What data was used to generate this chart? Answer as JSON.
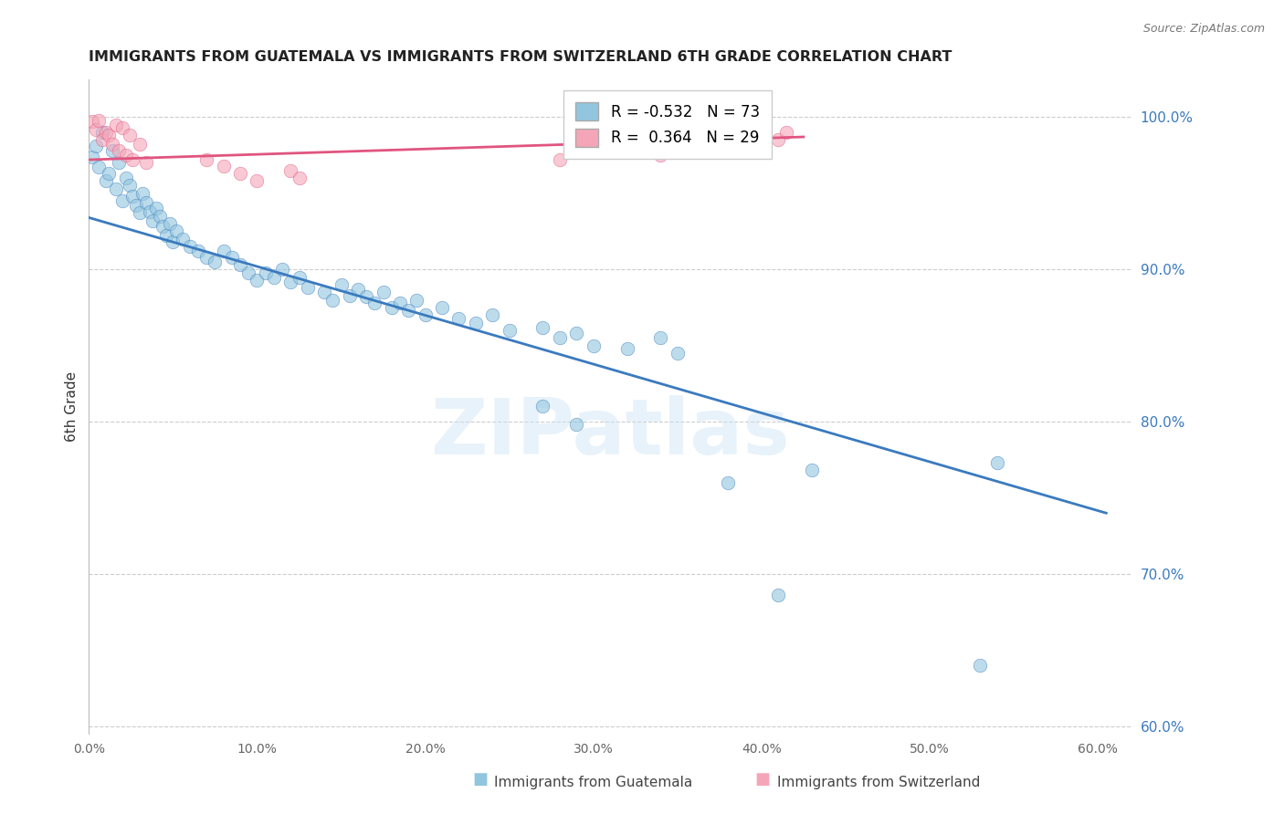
{
  "title": "IMMIGRANTS FROM GUATEMALA VS IMMIGRANTS FROM SWITZERLAND 6TH GRADE CORRELATION CHART",
  "source": "Source: ZipAtlas.com",
  "ylabel": "6th Grade",
  "legend_label_blue": "Immigrants from Guatemala",
  "legend_label_pink": "Immigrants from Switzerland",
  "xlim": [
    0.0,
    0.62
  ],
  "ylim": [
    0.595,
    1.025
  ],
  "xtick_labels": [
    "0.0%",
    "10.0%",
    "20.0%",
    "30.0%",
    "40.0%",
    "50.0%",
    "60.0%"
  ],
  "xtick_values": [
    0.0,
    0.1,
    0.2,
    0.3,
    0.4,
    0.5,
    0.6
  ],
  "ytick_right_labels": [
    "100.0%",
    "90.0%",
    "80.0%",
    "70.0%",
    "60.0%"
  ],
  "ytick_right_values": [
    1.0,
    0.9,
    0.8,
    0.7,
    0.6
  ],
  "r_blue": -0.532,
  "n_blue": 73,
  "r_pink": 0.364,
  "n_pink": 29,
  "blue_color": "#92c5de",
  "pink_color": "#f4a6b8",
  "blue_line_color": "#3a7abf",
  "pink_line_color": "#e05580",
  "watermark_text": "ZIPatlas",
  "blue_line_x": [
    0.0,
    0.605
  ],
  "blue_line_y": [
    0.934,
    0.74
  ],
  "pink_line_x": [
    0.0,
    0.425
  ],
  "pink_line_y": [
    0.972,
    0.987
  ],
  "blue_scatter": [
    [
      0.002,
      0.974
    ],
    [
      0.004,
      0.981
    ],
    [
      0.006,
      0.967
    ],
    [
      0.008,
      0.99
    ],
    [
      0.01,
      0.958
    ],
    [
      0.012,
      0.963
    ],
    [
      0.014,
      0.978
    ],
    [
      0.016,
      0.953
    ],
    [
      0.018,
      0.97
    ],
    [
      0.02,
      0.945
    ],
    [
      0.022,
      0.96
    ],
    [
      0.024,
      0.955
    ],
    [
      0.026,
      0.948
    ],
    [
      0.028,
      0.942
    ],
    [
      0.03,
      0.937
    ],
    [
      0.032,
      0.95
    ],
    [
      0.034,
      0.944
    ],
    [
      0.036,
      0.938
    ],
    [
      0.038,
      0.932
    ],
    [
      0.04,
      0.94
    ],
    [
      0.042,
      0.935
    ],
    [
      0.044,
      0.928
    ],
    [
      0.046,
      0.922
    ],
    [
      0.048,
      0.93
    ],
    [
      0.05,
      0.918
    ],
    [
      0.052,
      0.925
    ],
    [
      0.056,
      0.92
    ],
    [
      0.06,
      0.915
    ],
    [
      0.065,
      0.912
    ],
    [
      0.07,
      0.908
    ],
    [
      0.075,
      0.905
    ],
    [
      0.08,
      0.912
    ],
    [
      0.085,
      0.908
    ],
    [
      0.09,
      0.903
    ],
    [
      0.095,
      0.898
    ],
    [
      0.1,
      0.893
    ],
    [
      0.105,
      0.898
    ],
    [
      0.11,
      0.895
    ],
    [
      0.115,
      0.9
    ],
    [
      0.12,
      0.892
    ],
    [
      0.125,
      0.895
    ],
    [
      0.13,
      0.888
    ],
    [
      0.14,
      0.885
    ],
    [
      0.145,
      0.88
    ],
    [
      0.15,
      0.89
    ],
    [
      0.155,
      0.883
    ],
    [
      0.16,
      0.887
    ],
    [
      0.165,
      0.882
    ],
    [
      0.17,
      0.878
    ],
    [
      0.175,
      0.885
    ],
    [
      0.18,
      0.875
    ],
    [
      0.185,
      0.878
    ],
    [
      0.19,
      0.873
    ],
    [
      0.195,
      0.88
    ],
    [
      0.2,
      0.87
    ],
    [
      0.21,
      0.875
    ],
    [
      0.22,
      0.868
    ],
    [
      0.23,
      0.865
    ],
    [
      0.24,
      0.87
    ],
    [
      0.25,
      0.86
    ],
    [
      0.27,
      0.862
    ],
    [
      0.28,
      0.855
    ],
    [
      0.29,
      0.858
    ],
    [
      0.3,
      0.85
    ],
    [
      0.32,
      0.848
    ],
    [
      0.34,
      0.855
    ],
    [
      0.35,
      0.845
    ],
    [
      0.27,
      0.81
    ],
    [
      0.29,
      0.798
    ],
    [
      0.38,
      0.76
    ],
    [
      0.43,
      0.768
    ],
    [
      0.54,
      0.773
    ],
    [
      0.41,
      0.686
    ]
  ],
  "pink_scatter": [
    [
      0.002,
      0.997
    ],
    [
      0.004,
      0.992
    ],
    [
      0.006,
      0.998
    ],
    [
      0.008,
      0.985
    ],
    [
      0.01,
      0.99
    ],
    [
      0.012,
      0.988
    ],
    [
      0.014,
      0.982
    ],
    [
      0.016,
      0.995
    ],
    [
      0.018,
      0.978
    ],
    [
      0.02,
      0.993
    ],
    [
      0.022,
      0.975
    ],
    [
      0.024,
      0.988
    ],
    [
      0.026,
      0.972
    ],
    [
      0.03,
      0.982
    ],
    [
      0.034,
      0.97
    ],
    [
      0.07,
      0.972
    ],
    [
      0.08,
      0.968
    ],
    [
      0.09,
      0.963
    ],
    [
      0.1,
      0.958
    ],
    [
      0.12,
      0.965
    ],
    [
      0.125,
      0.96
    ],
    [
      0.28,
      0.972
    ],
    [
      0.3,
      0.978
    ],
    [
      0.34,
      0.975
    ],
    [
      0.36,
      0.98
    ],
    [
      0.39,
      0.982
    ],
    [
      0.4,
      0.978
    ],
    [
      0.41,
      0.985
    ],
    [
      0.415,
      0.99
    ]
  ],
  "extra_blue_isolated": [
    [
      0.53,
      0.64
    ]
  ]
}
